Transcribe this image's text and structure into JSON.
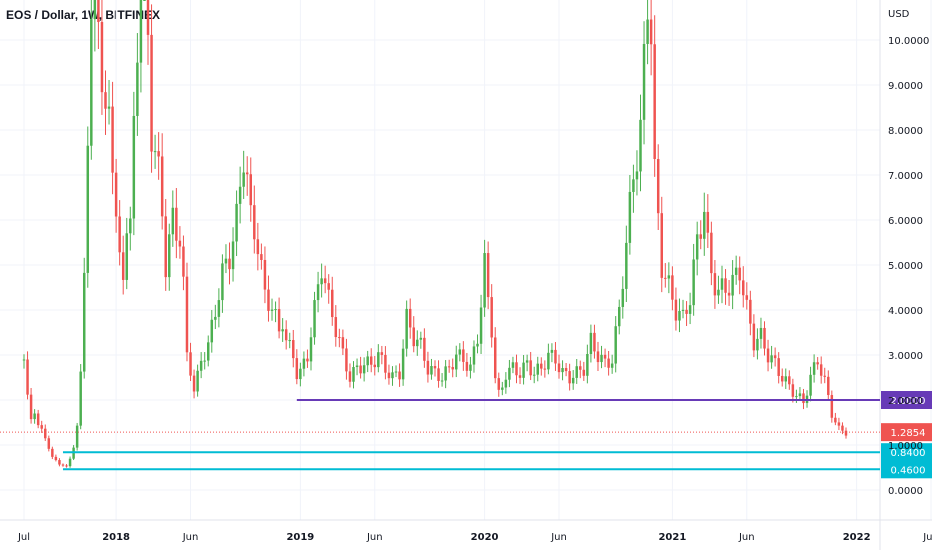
{
  "header": {
    "title": "EOS / Dollar, 1W, BITFINEX"
  },
  "chart_data": {
    "type": "candlestick",
    "title": "EOS / Dollar, 1W, BITFINEX",
    "ylabel": "USD",
    "ylim": [
      -0.8,
      11.0
    ],
    "yticks": [
      "0.0000",
      "1.0000",
      "2.0000",
      "3.0000",
      "4.0000",
      "5.0000",
      "6.0000",
      "7.0000",
      "8.0000",
      "9.0000",
      "10.0000"
    ],
    "xticks": [
      {
        "label": "Jul",
        "t": 0.0,
        "bold": false
      },
      {
        "label": "2018",
        "t": 26.0,
        "bold": true
      },
      {
        "label": "Jun",
        "t": 47.0,
        "bold": false
      },
      {
        "label": "2019",
        "t": 78.0,
        "bold": true
      },
      {
        "label": "Jun",
        "t": 99.0,
        "bold": false
      },
      {
        "label": "2020",
        "t": 130.0,
        "bold": true
      },
      {
        "label": "Jun",
        "t": 151.0,
        "bold": false
      },
      {
        "label": "2021",
        "t": 183.0,
        "bold": true
      },
      {
        "label": "Jun",
        "t": 204.0,
        "bold": false
      },
      {
        "label": "2022",
        "t": 235.0,
        "bold": true
      },
      {
        "label": "Jun",
        "t": 256.0,
        "bold": false
      }
    ],
    "colors": {
      "up": "#4caf50",
      "down": "#ef5350",
      "support_purple": "#673ab7",
      "support_cyan": "#00bcd4",
      "last_price": "#ef5350"
    },
    "levels": [
      {
        "value": 2.0,
        "label": "2.0000",
        "color": "#673ab7",
        "t_start": 77
      },
      {
        "value": 0.84,
        "label": "0.8400",
        "color": "#00bcd4",
        "t_start": 11
      },
      {
        "value": 0.46,
        "label": "0.4600",
        "color": "#00bcd4",
        "t_start": 11
      }
    ],
    "last_price": {
      "value": 1.2854,
      "label": "1.2854"
    },
    "anchors": [
      [
        0,
        2.9
      ],
      [
        1,
        2.0
      ],
      [
        2,
        1.6
      ],
      [
        3,
        1.8
      ],
      [
        4,
        1.4
      ],
      [
        6,
        1.2
      ],
      [
        8,
        0.7
      ],
      [
        10,
        0.6
      ],
      [
        12,
        0.5
      ],
      [
        13,
        0.7
      ],
      [
        14,
        1.0
      ],
      [
        15,
        1.4
      ],
      [
        16,
        2.5
      ],
      [
        17,
        5.0
      ],
      [
        18,
        8.0
      ],
      [
        19,
        10.0
      ],
      [
        20,
        12.0
      ],
      [
        21,
        11.0
      ],
      [
        22,
        9.0
      ],
      [
        23,
        8.0
      ],
      [
        24,
        8.5
      ],
      [
        25,
        7.5
      ],
      [
        26,
        6.0
      ],
      [
        27,
        5.0
      ],
      [
        28,
        4.8
      ],
      [
        29,
        6.0
      ],
      [
        30,
        5.8
      ],
      [
        31,
        8.0
      ],
      [
        32,
        10.0
      ],
      [
        33,
        12.0
      ],
      [
        34,
        11.5
      ],
      [
        35,
        10.0
      ],
      [
        36,
        8.0
      ],
      [
        37,
        7.5
      ],
      [
        38,
        7.0
      ],
      [
        39,
        6.2
      ],
      [
        40,
        5.0
      ],
      [
        41,
        5.5
      ],
      [
        42,
        6.0
      ],
      [
        43,
        5.8
      ],
      [
        44,
        5.6
      ],
      [
        45,
        4.5
      ],
      [
        46,
        3.0
      ],
      [
        47,
        2.7
      ],
      [
        48,
        2.2
      ],
      [
        49,
        2.5
      ],
      [
        50,
        2.9
      ],
      [
        52,
        3.2
      ],
      [
        54,
        4.0
      ],
      [
        56,
        4.8
      ],
      [
        58,
        5.2
      ],
      [
        60,
        6.0
      ],
      [
        62,
        7.5
      ],
      [
        63,
        6.9
      ],
      [
        64,
        6.0
      ],
      [
        66,
        5.5
      ],
      [
        68,
        4.3
      ],
      [
        70,
        4.1
      ],
      [
        72,
        3.5
      ],
      [
        73,
        3.8
      ],
      [
        74,
        3.3
      ],
      [
        76,
        3.0
      ],
      [
        77,
        2.6
      ],
      [
        78,
        2.6
      ],
      [
        80,
        3.0
      ],
      [
        82,
        4.0
      ],
      [
        84,
        5.0
      ],
      [
        86,
        4.2
      ],
      [
        88,
        3.6
      ],
      [
        90,
        3.0
      ],
      [
        92,
        2.5
      ],
      [
        94,
        2.7
      ],
      [
        96,
        2.8
      ],
      [
        98,
        2.8
      ],
      [
        100,
        3.0
      ],
      [
        102,
        2.7
      ],
      [
        104,
        2.5
      ],
      [
        106,
        2.6
      ],
      [
        108,
        3.8
      ],
      [
        110,
        3.4
      ],
      [
        112,
        3.2
      ],
      [
        114,
        2.7
      ],
      [
        116,
        2.6
      ],
      [
        118,
        2.5
      ],
      [
        120,
        2.7
      ],
      [
        122,
        3.0
      ],
      [
        124,
        2.9
      ],
      [
        126,
        2.7
      ],
      [
        128,
        3.4
      ],
      [
        130,
        5.0
      ],
      [
        131,
        4.2
      ],
      [
        132,
        3.6
      ],
      [
        133,
        2.5
      ],
      [
        134,
        2.1
      ],
      [
        135,
        2.3
      ],
      [
        136,
        2.6
      ],
      [
        138,
        2.7
      ],
      [
        140,
        2.6
      ],
      [
        142,
        2.8
      ],
      [
        144,
        2.6
      ],
      [
        146,
        2.7
      ],
      [
        148,
        3.0
      ],
      [
        150,
        2.9
      ],
      [
        152,
        2.6
      ],
      [
        154,
        2.5
      ],
      [
        156,
        2.6
      ],
      [
        158,
        2.7
      ],
      [
        160,
        3.3
      ],
      [
        162,
        3.0
      ],
      [
        164,
        2.8
      ],
      [
        166,
        2.9
      ],
      [
        168,
        4.0
      ],
      [
        170,
        5.5
      ],
      [
        172,
        7.0
      ],
      [
        174,
        8.0
      ],
      [
        176,
        10.9
      ],
      [
        177,
        10.3
      ],
      [
        178,
        7.0
      ],
      [
        179,
        6.0
      ],
      [
        180,
        5.0
      ],
      [
        182,
        4.5
      ],
      [
        184,
        4.0
      ],
      [
        186,
        3.8
      ],
      [
        188,
        4.3
      ],
      [
        190,
        5.5
      ],
      [
        192,
        6.3
      ],
      [
        193,
        5.4
      ],
      [
        194,
        4.8
      ],
      [
        196,
        4.4
      ],
      [
        198,
        4.5
      ],
      [
        200,
        4.6
      ],
      [
        202,
        4.9
      ],
      [
        204,
        4.0
      ],
      [
        206,
        3.3
      ],
      [
        208,
        3.4
      ],
      [
        210,
        3.0
      ],
      [
        212,
        2.8
      ],
      [
        214,
        2.5
      ],
      [
        216,
        2.3
      ],
      [
        218,
        2.1
      ],
      [
        220,
        1.95
      ],
      [
        222,
        2.5
      ],
      [
        224,
        2.9
      ],
      [
        226,
        2.4
      ],
      [
        228,
        1.7
      ],
      [
        230,
        1.35
      ],
      [
        232,
        1.2854
      ]
    ]
  }
}
